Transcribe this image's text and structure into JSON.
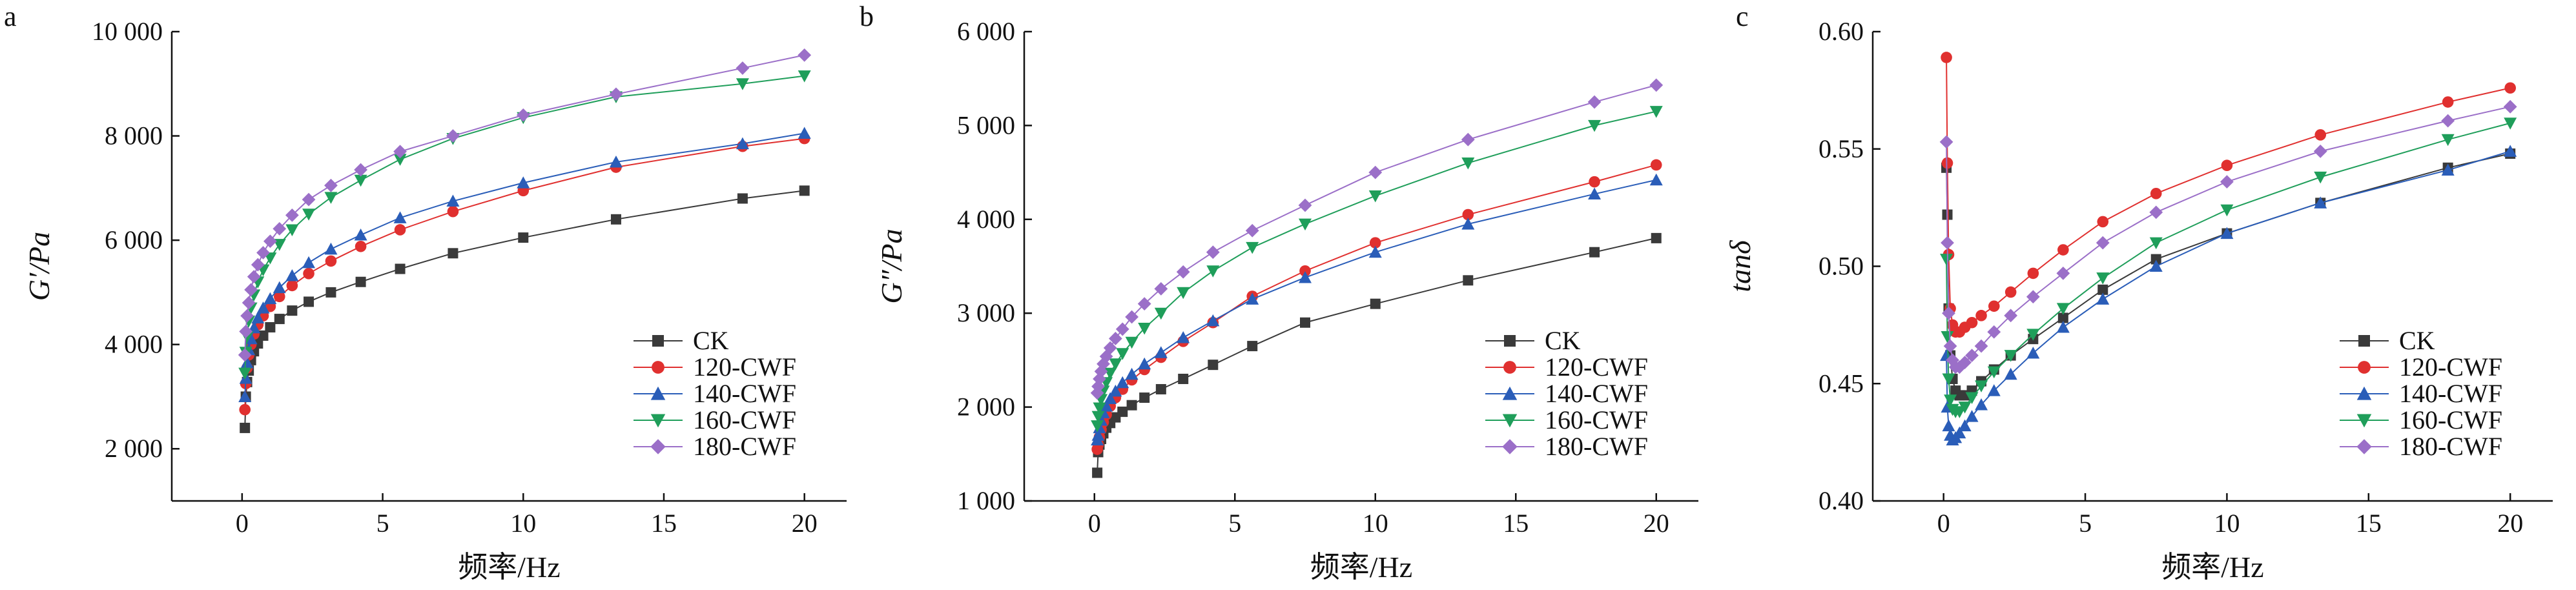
{
  "figure": {
    "panels": [
      "a",
      "b",
      "c"
    ]
  },
  "chart_data": [
    {
      "type": "line",
      "panel": "a",
      "title": "",
      "xlabel": "频率/Hz",
      "ylabel": "G′/Pa",
      "xlim": [
        -2.5,
        21.5
      ],
      "ylim": [
        1000,
        10000
      ],
      "xticks": [
        0,
        5,
        10,
        15,
        20
      ],
      "xtick_labels": [
        "0",
        "5",
        "10",
        "15",
        "20"
      ],
      "yticks": [
        2000,
        4000,
        6000,
        8000,
        10000
      ],
      "ytick_labels": [
        "2 000",
        "4 000",
        "6 000",
        "8 000",
        "10 000"
      ],
      "legend_position": "lower-right",
      "x": [
        0.1,
        0.133,
        0.178,
        0.237,
        0.316,
        0.422,
        0.562,
        0.75,
        1.0,
        1.33,
        1.78,
        2.37,
        3.16,
        4.22,
        5.62,
        7.5,
        10.0,
        13.3,
        17.8,
        20.0
      ],
      "series": [
        {
          "name": "CK",
          "color": "#3a3a3a",
          "marker": "square",
          "values": [
            2400,
            3000,
            3280,
            3500,
            3700,
            3870,
            4020,
            4170,
            4330,
            4490,
            4650,
            4820,
            5000,
            5200,
            5450,
            5750,
            6050,
            6400,
            6800,
            6950
          ]
        },
        {
          "name": "120-CWF",
          "color": "#e0302f",
          "marker": "circle",
          "values": [
            2750,
            3250,
            3550,
            3800,
            4000,
            4200,
            4380,
            4550,
            4730,
            4920,
            5130,
            5360,
            5600,
            5880,
            6200,
            6550,
            6950,
            7400,
            7800,
            7950
          ]
        },
        {
          "name": "140-CWF",
          "color": "#2a5db8",
          "marker": "triangle-up",
          "values": [
            3000,
            3350,
            3650,
            3900,
            4110,
            4320,
            4510,
            4700,
            4880,
            5090,
            5320,
            5570,
            5830,
            6100,
            6430,
            6750,
            7100,
            7500,
            7850,
            8050
          ]
        },
        {
          "name": "160-CWF",
          "color": "#1f9e5a",
          "marker": "triangle-down",
          "values": [
            3450,
            3850,
            4150,
            4450,
            4700,
            4950,
            5200,
            5430,
            5660,
            5920,
            6200,
            6500,
            6820,
            7150,
            7550,
            7950,
            8350,
            8750,
            9000,
            9150
          ]
        },
        {
          "name": "180-CWF",
          "color": "#9b6fc8",
          "marker": "diamond",
          "values": [
            3800,
            4250,
            4550,
            4800,
            5050,
            5300,
            5530,
            5760,
            5980,
            6220,
            6480,
            6780,
            7050,
            7350,
            7700,
            8000,
            8400,
            8800,
            9300,
            9550
          ]
        }
      ]
    },
    {
      "type": "line",
      "panel": "b",
      "title": "",
      "xlabel": "频率/Hz",
      "ylabel": "G″/Pa",
      "xlim": [
        -2.5,
        21.5
      ],
      "ylim": [
        1000,
        6000
      ],
      "xticks": [
        0,
        5,
        10,
        15,
        20
      ],
      "xtick_labels": [
        "0",
        "5",
        "10",
        "15",
        "20"
      ],
      "yticks": [
        1000,
        2000,
        3000,
        4000,
        5000,
        6000
      ],
      "ytick_labels": [
        "1 000",
        "2 000",
        "3 000",
        "4 000",
        "5 000",
        "6 000"
      ],
      "legend_position": "lower-right",
      "x": [
        0.1,
        0.133,
        0.178,
        0.237,
        0.316,
        0.422,
        0.562,
        0.75,
        1.0,
        1.33,
        1.78,
        2.37,
        3.16,
        4.22,
        5.62,
        7.5,
        10.0,
        13.3,
        17.8,
        20.0
      ],
      "series": [
        {
          "name": "CK",
          "color": "#3a3a3a",
          "marker": "square",
          "values": [
            1300,
            1520,
            1600,
            1660,
            1720,
            1780,
            1830,
            1890,
            1950,
            2020,
            2100,
            2190,
            2300,
            2450,
            2650,
            2900,
            3100,
            3350,
            3650,
            3800
          ]
        },
        {
          "name": "120-CWF",
          "color": "#e0302f",
          "marker": "circle",
          "values": [
            1550,
            1600,
            1680,
            1760,
            1840,
            1920,
            2010,
            2100,
            2190,
            2290,
            2400,
            2530,
            2700,
            2900,
            3180,
            3450,
            3750,
            4050,
            4400,
            4580
          ]
        },
        {
          "name": "140-CWF",
          "color": "#2a5db8",
          "marker": "triangle-up",
          "values": [
            1650,
            1700,
            1780,
            1860,
            1940,
            2010,
            2090,
            2170,
            2260,
            2350,
            2460,
            2580,
            2740,
            2920,
            3150,
            3380,
            3650,
            3950,
            4270,
            4420
          ]
        },
        {
          "name": "160-CWF",
          "color": "#1f9e5a",
          "marker": "triangle-down",
          "values": [
            1800,
            1900,
            1990,
            2080,
            2170,
            2260,
            2360,
            2460,
            2570,
            2690,
            2840,
            3000,
            3220,
            3450,
            3700,
            3950,
            4250,
            4600,
            5000,
            5150
          ]
        },
        {
          "name": "180-CWF",
          "color": "#9b6fc8",
          "marker": "diamond",
          "values": [
            2150,
            2220,
            2300,
            2380,
            2460,
            2540,
            2630,
            2730,
            2830,
            2960,
            3100,
            3260,
            3440,
            3650,
            3880,
            4150,
            4500,
            4850,
            5250,
            5430
          ]
        }
      ]
    },
    {
      "type": "line",
      "panel": "c",
      "title": "",
      "xlabel": "频率/Hz",
      "ylabel": "tanδ",
      "xlim": [
        -2.5,
        21.5
      ],
      "ylim": [
        0.4,
        0.6
      ],
      "xticks": [
        0,
        5,
        10,
        15,
        20
      ],
      "xtick_labels": [
        "0",
        "5",
        "10",
        "15",
        "20"
      ],
      "yticks": [
        0.4,
        0.45,
        0.5,
        0.55,
        0.6
      ],
      "ytick_labels": [
        "0.40",
        "0.45",
        "0.50",
        "0.55",
        "0.60"
      ],
      "legend_position": "lower-right",
      "x": [
        0.1,
        0.133,
        0.178,
        0.237,
        0.316,
        0.422,
        0.562,
        0.75,
        1.0,
        1.33,
        1.78,
        2.37,
        3.16,
        4.22,
        5.62,
        7.5,
        10.0,
        13.3,
        17.8,
        20.0
      ],
      "series": [
        {
          "name": "CK",
          "color": "#3a3a3a",
          "marker": "square",
          "values": [
            0.542,
            0.522,
            0.482,
            0.462,
            0.452,
            0.447,
            0.445,
            0.445,
            0.447,
            0.451,
            0.456,
            0.462,
            0.469,
            0.478,
            0.49,
            0.503,
            0.514,
            0.527,
            0.542,
            0.548
          ]
        },
        {
          "name": "120-CWF",
          "color": "#e0302f",
          "marker": "circle",
          "values": [
            0.589,
            0.544,
            0.505,
            0.482,
            0.475,
            0.472,
            0.472,
            0.474,
            0.476,
            0.479,
            0.483,
            0.489,
            0.497,
            0.507,
            0.519,
            0.531,
            0.543,
            0.556,
            0.57,
            0.576
          ]
        },
        {
          "name": "140-CWF",
          "color": "#2a5db8",
          "marker": "triangle-up",
          "values": [
            0.462,
            0.44,
            0.432,
            0.428,
            0.426,
            0.427,
            0.429,
            0.432,
            0.436,
            0.441,
            0.447,
            0.454,
            0.463,
            0.474,
            0.486,
            0.5,
            0.514,
            0.527,
            0.541,
            0.549
          ]
        },
        {
          "name": "160-CWF",
          "color": "#1f9e5a",
          "marker": "triangle-down",
          "values": [
            0.503,
            0.47,
            0.452,
            0.443,
            0.439,
            0.438,
            0.438,
            0.44,
            0.444,
            0.449,
            0.455,
            0.462,
            0.471,
            0.482,
            0.495,
            0.51,
            0.524,
            0.538,
            0.554,
            0.561
          ]
        },
        {
          "name": "180-CWF",
          "color": "#9b6fc8",
          "marker": "diamond",
          "values": [
            0.553,
            0.51,
            0.48,
            0.466,
            0.46,
            0.457,
            0.457,
            0.459,
            0.462,
            0.466,
            0.472,
            0.479,
            0.487,
            0.497,
            0.51,
            0.523,
            0.536,
            0.549,
            0.562,
            0.568
          ]
        }
      ]
    }
  ]
}
